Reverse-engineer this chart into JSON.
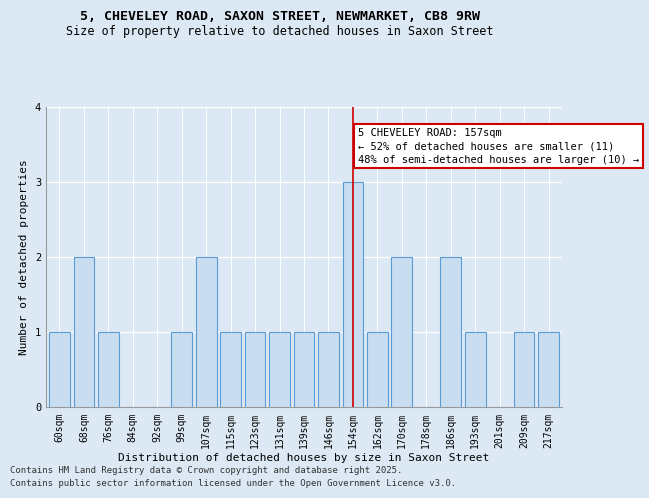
{
  "title_line1": "5, CHEVELEY ROAD, SAXON STREET, NEWMARKET, CB8 9RW",
  "title_line2": "Size of property relative to detached houses in Saxon Street",
  "xlabel": "Distribution of detached houses by size in Saxon Street",
  "ylabel": "Number of detached properties",
  "categories": [
    "60sqm",
    "68sqm",
    "76sqm",
    "84sqm",
    "92sqm",
    "99sqm",
    "107sqm",
    "115sqm",
    "123sqm",
    "131sqm",
    "139sqm",
    "146sqm",
    "154sqm",
    "162sqm",
    "170sqm",
    "178sqm",
    "186sqm",
    "193sqm",
    "201sqm",
    "209sqm",
    "217sqm"
  ],
  "values": [
    1,
    2,
    1,
    0,
    0,
    1,
    2,
    1,
    1,
    1,
    1,
    1,
    3,
    1,
    2,
    0,
    2,
    1,
    0,
    1,
    1
  ],
  "bar_color": "#c9ddf0",
  "bar_edge_color": "#5b9bd5",
  "bar_edge_width": 0.8,
  "red_line_index": 12,
  "red_line_color": "#cc0000",
  "annotation_text": "5 CHEVELEY ROAD: 157sqm\n← 52% of detached houses are smaller (11)\n48% of semi-detached houses are larger (10) →",
  "annotation_box_color": "#ffffff",
  "annotation_box_edge": "#cc0000",
  "ylim": [
    0,
    4
  ],
  "yticks": [
    0,
    1,
    2,
    3,
    4
  ],
  "background_color": "#dce9f5",
  "plot_bg_color": "#dce9f5",
  "footer_line1": "Contains HM Land Registry data © Crown copyright and database right 2025.",
  "footer_line2": "Contains public sector information licensed under the Open Government Licence v3.0.",
  "title_fontsize": 9.5,
  "subtitle_fontsize": 8.5,
  "axis_label_fontsize": 8,
  "tick_fontsize": 7,
  "annotation_fontsize": 7.5,
  "footer_fontsize": 6.5
}
